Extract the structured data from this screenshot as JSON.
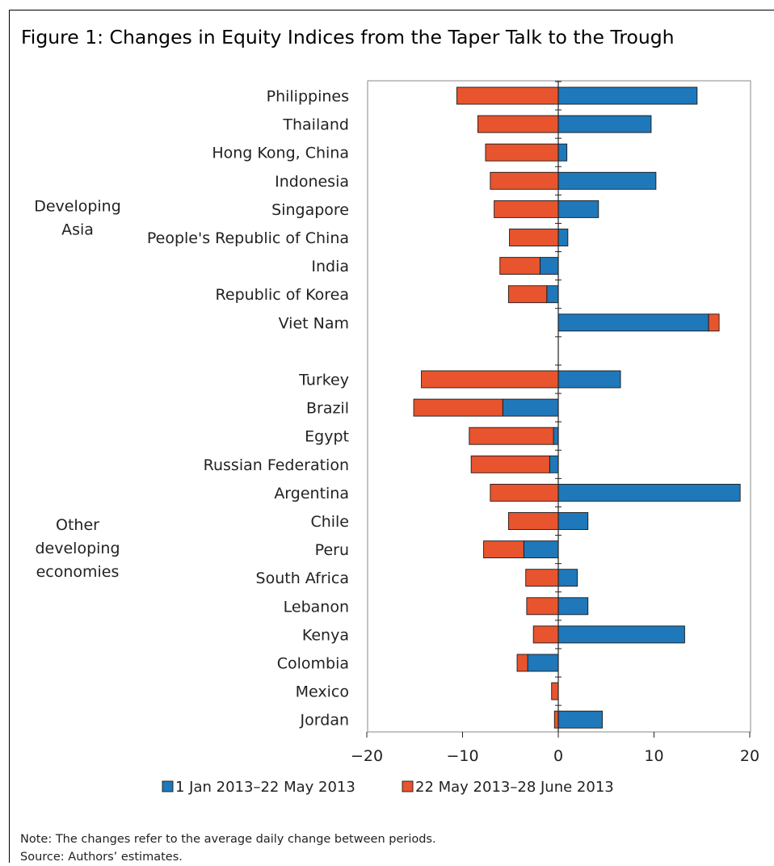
{
  "chart_data": {
    "type": "bar",
    "orientation": "horizontal",
    "stacked": true,
    "title": "Figure 1: Changes in Equity Indices from the Taper Talk to the Trough",
    "groups": [
      {
        "label": "Developing Asia",
        "categories": [
          "Philippines",
          "Thailand",
          "Hong Kong, China",
          "Indonesia",
          "Singapore",
          "People's Republic of China",
          "India",
          "Republic of Korea",
          "Viet Nam"
        ]
      },
      {
        "label": "Other developing economies",
        "categories": [
          "Turkey",
          "Brazil",
          "Egypt",
          "Russian Federation",
          "Argentina",
          "Chile",
          "Peru",
          "South Africa",
          "Lebanon",
          "Kenya",
          "Colombia",
          "Mexico",
          "Jordan"
        ]
      }
    ],
    "series": [
      {
        "name": "1 Jan 2013–22 May 2013",
        "color": "#1f78b9",
        "values": [
          14.5,
          9.7,
          0.9,
          10.2,
          4.2,
          1.0,
          -1.9,
          -1.2,
          15.7,
          6.5,
          -5.8,
          -0.5,
          -0.9,
          19.0,
          3.1,
          -3.6,
          2.0,
          3.1,
          13.2,
          -3.2,
          0.0,
          4.6
        ]
      },
      {
        "name": "22 May 2013–28 June 2013",
        "color": "#e8542e",
        "values": [
          -10.6,
          -8.4,
          -7.6,
          -7.1,
          -6.7,
          -5.1,
          -4.2,
          -4.0,
          1.1,
          -14.3,
          -9.3,
          -8.8,
          -8.2,
          -7.1,
          -5.2,
          -4.2,
          -3.4,
          -3.3,
          -2.6,
          -1.1,
          -0.7,
          -0.4
        ]
      }
    ],
    "xticks": [
      -20,
      -10,
      0,
      10,
      20
    ],
    "xtick_labels": [
      "−20",
      "−10",
      "0",
      "10",
      "20"
    ],
    "xlim": [
      -20,
      20
    ],
    "grid": false,
    "legend_position": "bottom"
  },
  "notes": {
    "note": "Note: The changes refer to the average daily change between periods.",
    "source": "Source: Authors’ estimates."
  }
}
